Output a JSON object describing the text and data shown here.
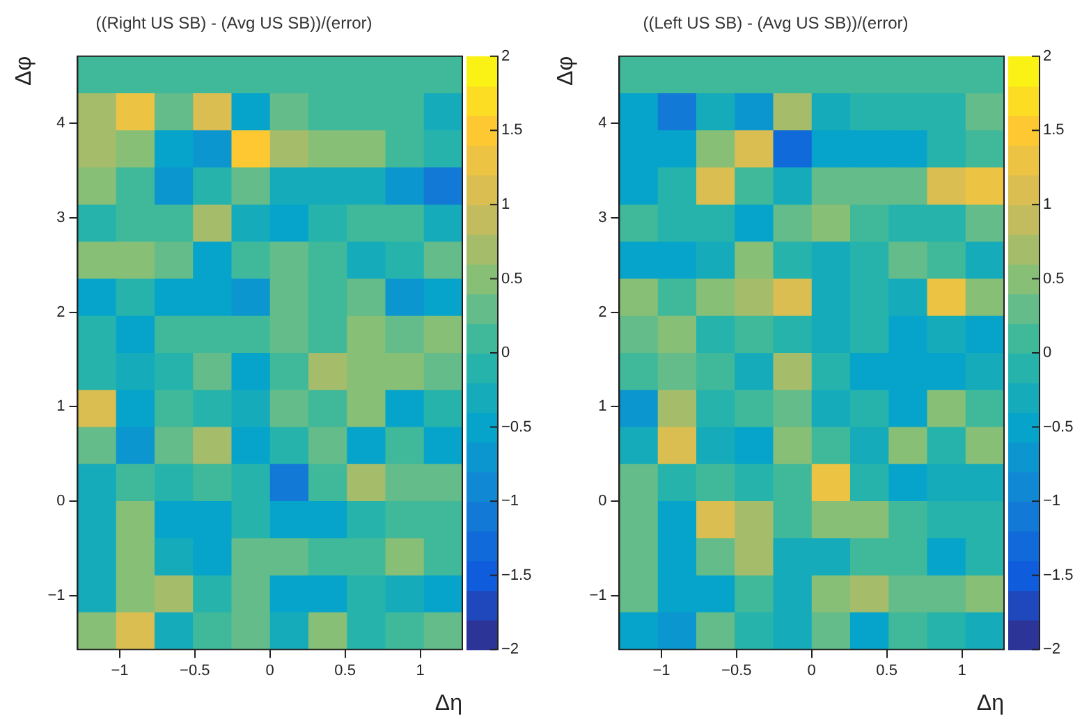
{
  "chart_data": [
    {
      "type": "heatmap",
      "title": "((Right US SB) - (Avg US SB))/(error)",
      "xlabel": "Δη",
      "ylabel": "Δφ",
      "x": [
        -1.152,
        -0.896,
        -0.64,
        -0.384,
        -0.128,
        0.128,
        0.384,
        0.64,
        0.896,
        1.152
      ],
      "y": [
        4.516,
        4.123,
        3.731,
        3.338,
        2.945,
        2.552,
        2.16,
        1.767,
        1.374,
        0.982,
        0.589,
        0.196,
        -0.196,
        -0.589,
        -0.982,
        -1.374
      ],
      "cells": [
        [
          0,
          0,
          0,
          0,
          0,
          0,
          0,
          0,
          0,
          0
        ],
        [
          0.7,
          1.3,
          0.3,
          1.0,
          -0.6,
          0.3,
          0.1,
          0.1,
          0.1,
          -0.3
        ],
        [
          0.7,
          0.5,
          -0.5,
          -0.8,
          1.5,
          0.7,
          0.5,
          0.5,
          0.1,
          -0.1
        ],
        [
          0.5,
          0.1,
          -0.8,
          -0.1,
          0.3,
          -0.3,
          -0.3,
          -0.3,
          -0.8,
          -1.1
        ],
        [
          -0.1,
          0.1,
          0.1,
          0.7,
          -0.3,
          -0.5,
          -0.1,
          0.1,
          0.1,
          -0.3
        ],
        [
          0.5,
          0.5,
          0.3,
          -0.5,
          0.1,
          0.3,
          0.1,
          -0.3,
          -0.1,
          0.3
        ],
        [
          -0.5,
          -0.1,
          -0.5,
          -0.6,
          -0.8,
          0.3,
          0.1,
          0.3,
          -0.8,
          -0.5
        ],
        [
          -0.1,
          -0.5,
          0.1,
          0.1,
          0.1,
          0.3,
          0.1,
          0.5,
          0.3,
          0.5
        ],
        [
          -0.1,
          -0.3,
          -0.1,
          0.3,
          -0.6,
          0.1,
          0.7,
          0.5,
          0.5,
          0.3
        ],
        [
          1.1,
          -0.5,
          0.1,
          -0.1,
          -0.3,
          0.3,
          0.1,
          0.5,
          -0.5,
          -0.1
        ],
        [
          0.3,
          -0.8,
          0.3,
          0.7,
          -0.5,
          -0.1,
          0.3,
          -0.6,
          0.1,
          -0.5
        ],
        [
          -0.3,
          0.1,
          -0.1,
          0.1,
          -0.1,
          -1.1,
          0.1,
          0.7,
          0.3,
          0.3
        ],
        [
          -0.3,
          0.5,
          -0.6,
          -0.6,
          -0.1,
          -0.5,
          -0.5,
          -0.1,
          0.1,
          0.1
        ],
        [
          -0.3,
          0.5,
          -0.3,
          -0.6,
          0.3,
          0.3,
          0.1,
          0.1,
          0.5,
          0.1
        ],
        [
          -0.3,
          0.5,
          0.7,
          -0.1,
          0.3,
          -0.5,
          -0.6,
          -0.1,
          -0.3,
          -0.5
        ],
        [
          0.5,
          1.0,
          -0.3,
          0.1,
          0.3,
          -0.3,
          0.5,
          -0.1,
          0.1,
          0.3
        ]
      ],
      "xlim": [
        -1.28,
        1.28
      ],
      "xticks": [
        -1,
        -0.5,
        0,
        0.5,
        1
      ],
      "ylim": [
        -1.571,
        4.712
      ],
      "yticks": [
        -1,
        0,
        1,
        2,
        3,
        4
      ],
      "clim": [
        -2,
        2
      ],
      "cticks": [
        -2,
        -1.5,
        -1,
        -0.5,
        0,
        0.5,
        1,
        1.5,
        2
      ]
    },
    {
      "type": "heatmap",
      "title": "((Left US SB) - (Avg US SB))/(error)",
      "xlabel": "Δη",
      "ylabel": "Δφ",
      "x": [
        -1.152,
        -0.896,
        -0.64,
        -0.384,
        -0.128,
        0.128,
        0.384,
        0.64,
        0.896,
        1.152
      ],
      "y": [
        4.516,
        4.123,
        3.731,
        3.338,
        2.945,
        2.552,
        2.16,
        1.767,
        1.374,
        0.982,
        0.589,
        0.196,
        -0.196,
        -0.589,
        -0.982,
        -1.374
      ],
      "cells": [
        [
          0,
          0,
          0,
          0,
          0,
          0,
          0,
          0,
          0,
          0
        ],
        [
          -0.5,
          -1.1,
          -0.3,
          -0.8,
          0.7,
          -0.3,
          -0.1,
          -0.1,
          -0.1,
          0.3
        ],
        [
          -0.6,
          -0.5,
          0.5,
          1.0,
          -1.3,
          -0.6,
          -0.5,
          -0.5,
          -0.1,
          0.1
        ],
        [
          -0.5,
          -0.1,
          1.0,
          0.1,
          -0.3,
          0.3,
          0.3,
          0.3,
          1.0,
          1.3
        ],
        [
          0.1,
          -0.1,
          -0.1,
          -0.6,
          0.3,
          0.5,
          0.1,
          -0.1,
          -0.1,
          0.3
        ],
        [
          -0.5,
          -0.5,
          -0.3,
          0.5,
          -0.1,
          -0.3,
          -0.1,
          0.3,
          0.1,
          -0.3
        ],
        [
          0.5,
          0.1,
          0.5,
          0.7,
          1.1,
          -0.3,
          -0.1,
          -0.3,
          1.2,
          0.5
        ],
        [
          0.3,
          0.5,
          -0.1,
          0.1,
          -0.1,
          -0.3,
          -0.1,
          -0.5,
          -0.3,
          -0.5
        ],
        [
          0.1,
          0.3,
          0.1,
          -0.3,
          0.7,
          -0.1,
          -0.6,
          -0.5,
          -0.5,
          -0.3
        ],
        [
          -0.8,
          0.7,
          -0.1,
          0.1,
          0.3,
          -0.3,
          -0.1,
          -0.5,
          0.5,
          0.1
        ],
        [
          -0.3,
          1.0,
          -0.3,
          -0.6,
          0.5,
          0.1,
          -0.3,
          0.5,
          -0.1,
          0.5
        ],
        [
          0.3,
          -0.1,
          0.1,
          -0.1,
          0.1,
          1.3,
          -0.1,
          -0.6,
          -0.3,
          -0.3
        ],
        [
          0.3,
          -0.5,
          1.0,
          0.7,
          0.1,
          0.5,
          0.5,
          0.1,
          -0.1,
          -0.1
        ],
        [
          0.3,
          -0.5,
          0.3,
          0.7,
          -0.3,
          -0.3,
          0.1,
          0.1,
          -0.5,
          -0.1
        ],
        [
          0.3,
          -0.5,
          -0.6,
          0.1,
          -0.3,
          0.5,
          0.7,
          0.3,
          0.3,
          0.5
        ],
        [
          -0.5,
          -0.8,
          0.3,
          -0.1,
          -0.3,
          0.3,
          -0.5,
          0.1,
          -0.1,
          -0.3
        ]
      ],
      "xlim": [
        -1.28,
        1.28
      ],
      "xticks": [
        -1,
        -0.5,
        0,
        0.5,
        1
      ],
      "ylim": [
        -1.571,
        4.712
      ],
      "yticks": [
        -1,
        0,
        1,
        2,
        3,
        4
      ],
      "clim": [
        -2,
        2
      ],
      "cticks": [
        -2,
        -1.5,
        -1,
        -0.5,
        0,
        0.5,
        1,
        1.5,
        2
      ]
    }
  ]
}
